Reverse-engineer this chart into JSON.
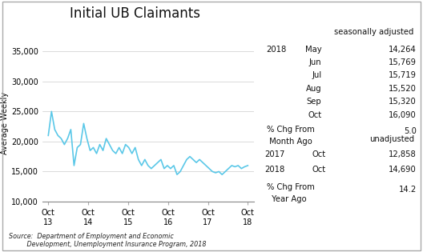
{
  "title": "Initial UB Claimants",
  "ylabel": "Average Weekly",
  "ylim": [
    10000,
    36000
  ],
  "yticks": [
    10000,
    15000,
    20000,
    25000,
    30000,
    35000
  ],
  "xtick_labels": [
    "Oct\n13",
    "Oct\n14",
    "Oct\n15",
    "Oct\n16",
    "Oct\n17",
    "Oct\n18"
  ],
  "line_color": "#5bc8e8",
  "line_width": 1.2,
  "background_color": "#ffffff",
  "source_text": "Source:  Department of Employment and Economic\n         Development, Unemployment Insurance Program, 2018",
  "sa_label": "seasonally adjusted",
  "unadj_label": "unadjusted",
  "sa_year": "2018",
  "sa_rows": [
    [
      "May",
      "14,264"
    ],
    [
      "Jun",
      "15,769"
    ],
    [
      "Jul",
      "15,719"
    ],
    [
      "Aug",
      "15,520"
    ],
    [
      "Sep",
      "15,320"
    ],
    [
      "Oct",
      "16,090"
    ]
  ],
  "pct_month_label1": "% Chg From",
  "pct_month_label2": " Month Ago",
  "pct_month_value": "5.0",
  "unadj_rows": [
    [
      "2017",
      "Oct",
      "12,858"
    ],
    [
      "2018",
      "Oct",
      "14,690"
    ]
  ],
  "pct_year_label1": "% Chg From",
  "pct_year_label2": "  Year Ago",
  "pct_year_value": "14.2",
  "line_data_y": [
    21000,
    25000,
    22000,
    21000,
    20500,
    19500,
    20500,
    22000,
    16000,
    19000,
    19500,
    23000,
    20500,
    18500,
    19000,
    18000,
    19500,
    18500,
    20500,
    19500,
    18500,
    18000,
    19000,
    18000,
    19500,
    19000,
    18000,
    19000,
    17000,
    16000,
    17000,
    16000,
    15500,
    16000,
    16500,
    17000,
    15500,
    16000,
    15500,
    16000,
    14500,
    15000,
    16000,
    17000,
    17500,
    17000,
    16500,
    17000,
    16500,
    16000,
    15500,
    15000,
    14800,
    15000,
    14500,
    15000,
    15500,
    16000,
    15800,
    16000,
    15500,
    15800,
    16000
  ]
}
